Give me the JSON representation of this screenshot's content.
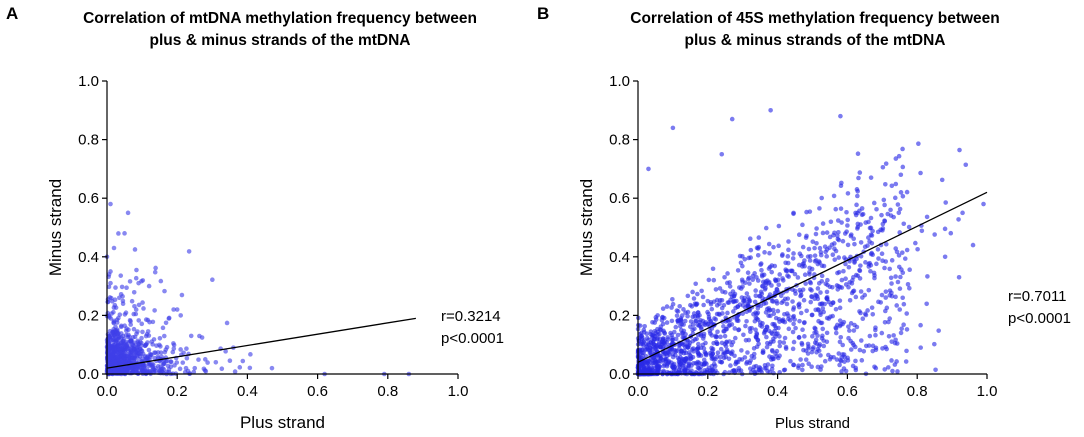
{
  "chart_data": [
    {
      "type": "scatter",
      "panel_label": "A",
      "title_lines": [
        "Correlation of mtDNA methylation frequency between",
        "plus & minus strands of the mtDNA"
      ],
      "xlabel": "Plus strand",
      "ylabel": "Minus strand",
      "xlim": [
        0,
        1.0
      ],
      "ylim": [
        0,
        1.0
      ],
      "xticks": [
        "0.0",
        "0.2",
        "0.4",
        "0.6",
        "0.8",
        "1.0"
      ],
      "yticks": [
        "0.0",
        "0.2",
        "0.4",
        "0.6",
        "0.8",
        "1.0"
      ],
      "point_color": "#3f3fe8",
      "fit_line": {
        "x": [
          0.0,
          0.88
        ],
        "y": [
          0.02,
          0.19
        ]
      },
      "annotation": {
        "r": "r=0.3214",
        "p": "p<0.0001"
      },
      "points": [
        {
          "x": 0.01,
          "y": 0.58
        },
        {
          "x": 0.06,
          "y": 0.55
        },
        {
          "x": 0.05,
          "y": 0.48
        },
        {
          "x": 0.02,
          "y": 0.43
        },
        {
          "x": 0.0,
          "y": 0.4
        },
        {
          "x": 0.01,
          "y": 0.35
        },
        {
          "x": 0.01,
          "y": 0.31
        },
        {
          "x": 0.09,
          "y": 0.31
        },
        {
          "x": 0.12,
          "y": 0.3
        },
        {
          "x": 0.2,
          "y": 0.22
        },
        {
          "x": 0.21,
          "y": 0.2
        },
        {
          "x": 0.24,
          "y": 0.13
        },
        {
          "x": 0.28,
          "y": 0.05
        },
        {
          "x": 0.31,
          "y": 0.04
        },
        {
          "x": 0.36,
          "y": 0.09
        },
        {
          "x": 0.47,
          "y": 0.02
        },
        {
          "x": 0.62,
          "y": 0.0
        },
        {
          "x": 0.79,
          "y": 0.0
        },
        {
          "x": 0.86,
          "y": 0.0
        },
        {
          "x": 0.17,
          "y": 0.0
        },
        {
          "x": 0.25,
          "y": 0.02
        }
      ],
      "cloud": {
        "n": 900,
        "x_scale": 0.06,
        "y_scale": 0.06,
        "seed": 11
      }
    },
    {
      "type": "scatter",
      "panel_label": "B",
      "title_lines": [
        "Correlation of 45S methylation frequency between",
        "plus & minus strands of the mtDNA"
      ],
      "xlabel": "Plus strand",
      "ylabel": "Minus strand",
      "xlim": [
        0,
        1.0
      ],
      "ylim": [
        0,
        1.0
      ],
      "xticks": [
        "0.0",
        "0.2",
        "0.4",
        "0.6",
        "0.8",
        "1.0"
      ],
      "yticks": [
        "0.0",
        "0.2",
        "0.4",
        "0.6",
        "0.8",
        "1.0"
      ],
      "point_color": "#2a2ae6",
      "fit_line": {
        "x": [
          0.0,
          1.0
        ],
        "y": [
          0.04,
          0.62
        ]
      },
      "annotation": {
        "r": "r=0.7011",
        "p": "p<0.0001"
      },
      "points": [
        {
          "x": 0.38,
          "y": 0.9
        },
        {
          "x": 0.58,
          "y": 0.88
        },
        {
          "x": 0.27,
          "y": 0.87
        },
        {
          "x": 0.24,
          "y": 0.75
        },
        {
          "x": 0.1,
          "y": 0.84
        },
        {
          "x": 0.03,
          "y": 0.7
        },
        {
          "x": 0.93,
          "y": 0.55
        },
        {
          "x": 0.99,
          "y": 0.58
        },
        {
          "x": 0.96,
          "y": 0.44
        },
        {
          "x": 0.92,
          "y": 0.33
        },
        {
          "x": 0.88,
          "y": 0.4
        },
        {
          "x": 0.81,
          "y": 0.09
        },
        {
          "x": 0.75,
          "y": 0.22
        },
        {
          "x": 0.68,
          "y": 0.15
        },
        {
          "x": 0.55,
          "y": 0.05
        }
      ],
      "cloud": {
        "n": 1600,
        "x_scale": 0.22,
        "y_scale": 0.09,
        "seed": 29,
        "slope": 0.58,
        "intercept": 0.04
      }
    }
  ]
}
